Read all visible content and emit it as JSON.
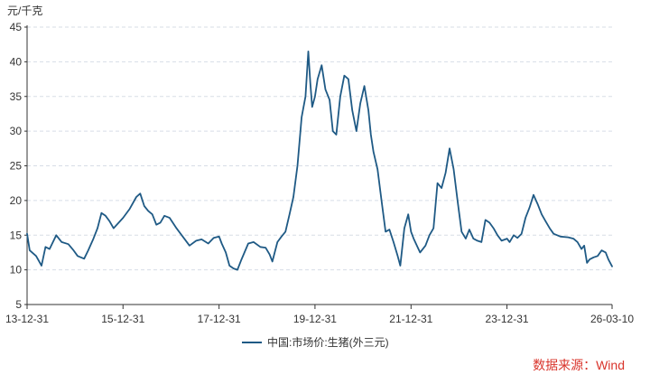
{
  "unit_label": "元/千克",
  "legend_label": "中国:市场价:生猪(外三元)",
  "source_label": "数据来源：Wind",
  "colors": {
    "line": "#1f5a85",
    "axis": "#333333",
    "grid": "#d7dde6",
    "source": "#d9342b"
  },
  "chart_data": {
    "type": "line",
    "title": "",
    "xlabel": "",
    "ylabel": "元/千克",
    "ylim": [
      5,
      45
    ],
    "yticks": [
      5,
      10,
      15,
      20,
      25,
      30,
      35,
      40,
      45
    ],
    "xlim": [
      "2013-12-31",
      "2026-03-10"
    ],
    "xticks": [
      "13-12-31",
      "15-12-31",
      "17-12-31",
      "19-12-31",
      "21-12-31",
      "23-12-31",
      "26-03-10"
    ],
    "xtick_dates": [
      "2013-12-31",
      "2015-12-31",
      "2017-12-31",
      "2019-12-31",
      "2021-12-31",
      "2023-12-31",
      "2026-03-10"
    ],
    "grid": "horizontal dashed",
    "legend": "bottom-center",
    "series": [
      {
        "name": "中国:市场价:生猪(外三元)",
        "points": [
          [
            "2013-12-31",
            15.2
          ],
          [
            "2014-01-20",
            12.8
          ],
          [
            "2014-03-10",
            12.0
          ],
          [
            "2014-04-20",
            10.6
          ],
          [
            "2014-05-20",
            13.3
          ],
          [
            "2014-06-20",
            13.0
          ],
          [
            "2014-08-10",
            15.0
          ],
          [
            "2014-09-20",
            14.0
          ],
          [
            "2014-11-10",
            13.7
          ],
          [
            "2014-12-20",
            12.8
          ],
          [
            "2015-01-20",
            12.0
          ],
          [
            "2015-03-10",
            11.6
          ],
          [
            "2015-04-10",
            12.8
          ],
          [
            "2015-05-20",
            14.5
          ],
          [
            "2015-06-20",
            16.0
          ],
          [
            "2015-07-20",
            18.2
          ],
          [
            "2015-08-20",
            17.8
          ],
          [
            "2015-09-20",
            17.0
          ],
          [
            "2015-10-20",
            16.0
          ],
          [
            "2015-12-31",
            17.5
          ],
          [
            "2016-02-20",
            18.8
          ],
          [
            "2016-04-10",
            20.5
          ],
          [
            "2016-05-10",
            21.0
          ],
          [
            "2016-06-10",
            19.2
          ],
          [
            "2016-07-10",
            18.5
          ],
          [
            "2016-08-10",
            18.0
          ],
          [
            "2016-09-10",
            16.5
          ],
          [
            "2016-10-10",
            16.8
          ],
          [
            "2016-11-10",
            17.8
          ],
          [
            "2016-12-20",
            17.5
          ],
          [
            "2017-02-10",
            16.0
          ],
          [
            "2017-04-10",
            14.5
          ],
          [
            "2017-05-20",
            13.5
          ],
          [
            "2017-07-10",
            14.2
          ],
          [
            "2017-08-20",
            14.4
          ],
          [
            "2017-10-10",
            13.8
          ],
          [
            "2017-11-20",
            14.6
          ],
          [
            "2017-12-31",
            14.8
          ],
          [
            "2018-01-20",
            13.8
          ],
          [
            "2018-02-20",
            12.5
          ],
          [
            "2018-03-20",
            10.6
          ],
          [
            "2018-04-20",
            10.2
          ],
          [
            "2018-05-20",
            10.0
          ],
          [
            "2018-06-20",
            11.5
          ],
          [
            "2018-08-10",
            13.8
          ],
          [
            "2018-09-20",
            14.0
          ],
          [
            "2018-11-10",
            13.3
          ],
          [
            "2018-12-20",
            13.2
          ],
          [
            "2019-01-20",
            12.2
          ],
          [
            "2019-02-10",
            11.2
          ],
          [
            "2019-03-20",
            14.0
          ],
          [
            "2019-04-20",
            14.8
          ],
          [
            "2019-05-20",
            15.5
          ],
          [
            "2019-06-20",
            18.0
          ],
          [
            "2019-07-20",
            20.5
          ],
          [
            "2019-08-20",
            25.0
          ],
          [
            "2019-09-20",
            32.0
          ],
          [
            "2019-10-20",
            35.0
          ],
          [
            "2019-11-10",
            41.5
          ],
          [
            "2019-11-25",
            37.0
          ],
          [
            "2019-12-10",
            33.5
          ],
          [
            "2019-12-31",
            35.0
          ],
          [
            "2020-01-20",
            37.5
          ],
          [
            "2020-02-20",
            39.5
          ],
          [
            "2020-03-20",
            36.0
          ],
          [
            "2020-04-20",
            34.5
          ],
          [
            "2020-05-15",
            30.0
          ],
          [
            "2020-06-10",
            29.5
          ],
          [
            "2020-07-10",
            35.0
          ],
          [
            "2020-08-10",
            38.0
          ],
          [
            "2020-09-10",
            37.5
          ],
          [
            "2020-10-10",
            33.0
          ],
          [
            "2020-11-10",
            30.0
          ],
          [
            "2020-12-10",
            34.0
          ],
          [
            "2021-01-10",
            36.5
          ],
          [
            "2021-02-10",
            33.0
          ],
          [
            "2021-02-28",
            29.5
          ],
          [
            "2021-03-20",
            27.0
          ],
          [
            "2021-04-20",
            24.5
          ],
          [
            "2021-05-20",
            20.0
          ],
          [
            "2021-06-20",
            15.5
          ],
          [
            "2021-07-20",
            15.8
          ],
          [
            "2021-08-20",
            14.0
          ],
          [
            "2021-09-20",
            12.0
          ],
          [
            "2021-10-10",
            10.6
          ],
          [
            "2021-11-10",
            16.0
          ],
          [
            "2021-12-10",
            18.0
          ],
          [
            "2021-12-31",
            15.5
          ],
          [
            "2022-01-20",
            14.5
          ],
          [
            "2022-03-10",
            12.5
          ],
          [
            "2022-04-20",
            13.5
          ],
          [
            "2022-05-20",
            15.0
          ],
          [
            "2022-06-20",
            16.0
          ],
          [
            "2022-07-20",
            22.5
          ],
          [
            "2022-08-20",
            21.8
          ],
          [
            "2022-09-20",
            24.0
          ],
          [
            "2022-10-20",
            27.5
          ],
          [
            "2022-11-20",
            24.5
          ],
          [
            "2022-12-20",
            20.0
          ],
          [
            "2023-01-20",
            15.5
          ],
          [
            "2023-02-20",
            14.5
          ],
          [
            "2023-03-20",
            15.8
          ],
          [
            "2023-04-20",
            14.5
          ],
          [
            "2023-05-20",
            14.2
          ],
          [
            "2023-06-20",
            14.0
          ],
          [
            "2023-07-20",
            17.2
          ],
          [
            "2023-08-20",
            16.8
          ],
          [
            "2023-09-20",
            16.0
          ],
          [
            "2023-10-20",
            15.0
          ],
          [
            "2023-11-20",
            14.2
          ],
          [
            "2023-12-31",
            14.5
          ],
          [
            "2024-01-20",
            14.0
          ],
          [
            "2024-02-20",
            15.0
          ],
          [
            "2024-03-20",
            14.6
          ],
          [
            "2024-04-20",
            15.2
          ],
          [
            "2024-05-20",
            17.5
          ],
          [
            "2024-06-20",
            19.0
          ],
          [
            "2024-07-20",
            20.8
          ],
          [
            "2024-08-20",
            19.5
          ],
          [
            "2024-09-20",
            18.0
          ],
          [
            "2024-10-20",
            17.0
          ],
          [
            "2024-11-20",
            16.0
          ],
          [
            "2024-12-20",
            15.2
          ],
          [
            "2025-02-10",
            14.8
          ],
          [
            "2025-04-10",
            14.7
          ],
          [
            "2025-05-20",
            14.5
          ],
          [
            "2025-06-20",
            14.0
          ],
          [
            "2025-07-20",
            13.0
          ],
          [
            "2025-08-10",
            13.5
          ],
          [
            "2025-08-31",
            11.0
          ],
          [
            "2025-09-20",
            11.5
          ],
          [
            "2025-10-20",
            11.8
          ],
          [
            "2025-11-20",
            12.0
          ],
          [
            "2025-12-20",
            12.8
          ],
          [
            "2026-01-20",
            12.5
          ],
          [
            "2026-02-10",
            11.5
          ],
          [
            "2026-03-10",
            10.5
          ]
        ]
      }
    ]
  }
}
